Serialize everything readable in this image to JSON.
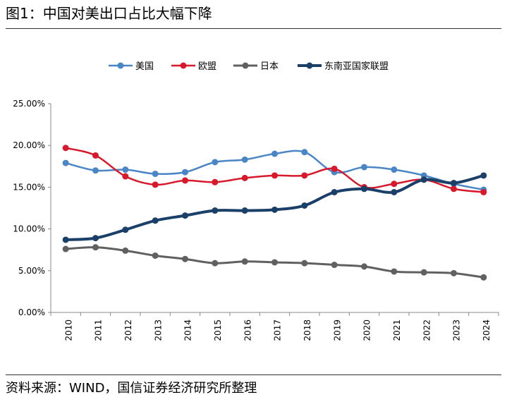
{
  "title": "图1：中国对美出口占比大幅下降",
  "source": "资料来源：WIND，国信证券经济研究所整理",
  "chart_data": {
    "type": "line",
    "title": "",
    "xlabel": "",
    "ylabel": "",
    "x": [
      "2010",
      "2011",
      "2012",
      "2013",
      "2014",
      "2015",
      "2016",
      "2017",
      "2018",
      "2019",
      "2020",
      "2021",
      "2022",
      "2023",
      "2024"
    ],
    "ylim": [
      0,
      25
    ],
    "yticks": [
      0,
      5,
      10,
      15,
      20,
      25
    ],
    "ytick_labels": [
      "0.00%",
      "5.00%",
      "10.00%",
      "15.00%",
      "20.00%",
      "25.00%"
    ],
    "grid": false,
    "legend_position": "top",
    "series": [
      {
        "name": "美国",
        "color": "#4a86c5",
        "width": 2.5,
        "values": [
          17.9,
          17.0,
          17.1,
          16.6,
          16.8,
          18.0,
          18.3,
          19.0,
          19.2,
          16.8,
          17.4,
          17.1,
          16.4,
          15.4,
          14.7
        ]
      },
      {
        "name": "欧盟",
        "color": "#d7192c",
        "width": 2.5,
        "values": [
          19.7,
          18.8,
          16.3,
          15.3,
          15.8,
          15.6,
          16.1,
          16.4,
          16.4,
          17.2,
          15.0,
          15.4,
          15.9,
          14.8,
          14.4
        ]
      },
      {
        "name": "日本",
        "color": "#606060",
        "width": 3,
        "values": [
          7.6,
          7.8,
          7.4,
          6.8,
          6.4,
          5.9,
          6.1,
          6.0,
          5.9,
          5.7,
          5.5,
          4.9,
          4.8,
          4.7,
          4.2
        ]
      },
      {
        "name": "东南亚国家联盟",
        "color": "#1a3f68",
        "width": 4,
        "values": [
          8.7,
          8.9,
          9.9,
          11.0,
          11.6,
          12.2,
          12.2,
          12.3,
          12.8,
          14.4,
          14.8,
          14.4,
          15.9,
          15.5,
          16.4
        ]
      }
    ]
  }
}
